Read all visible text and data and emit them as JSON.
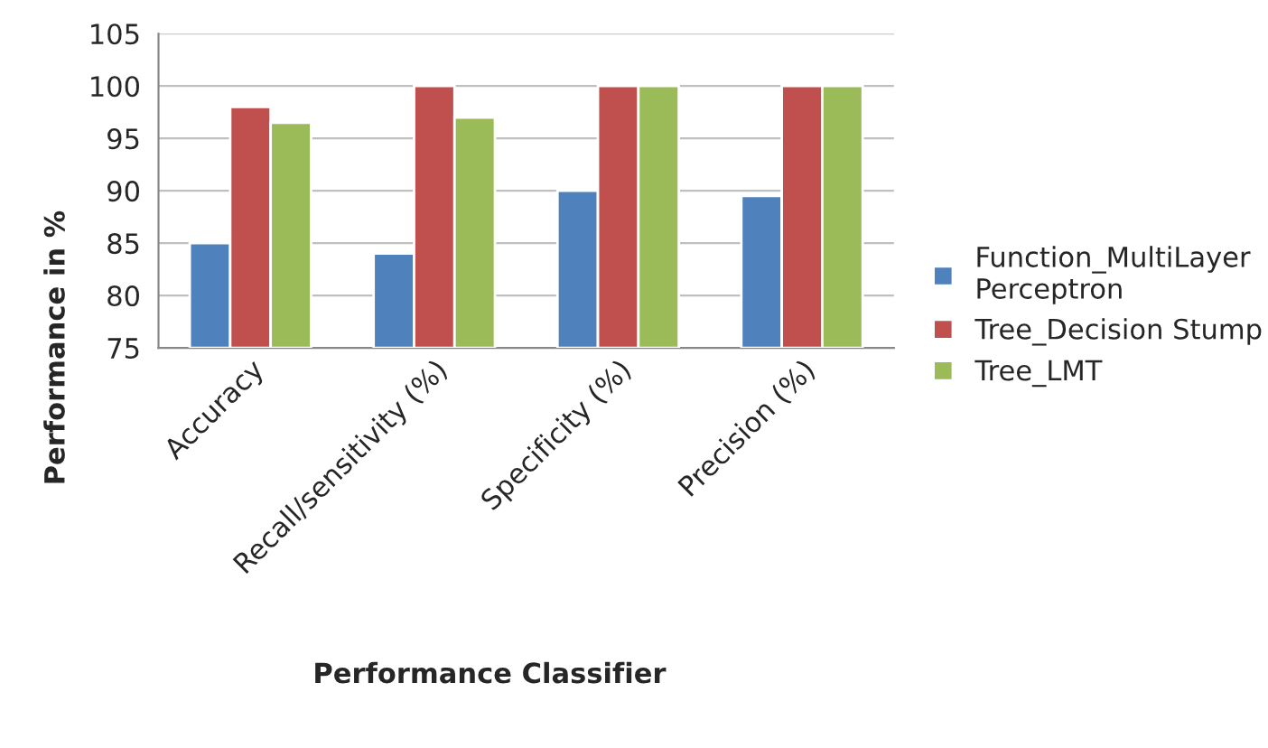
{
  "chart_data": {
    "type": "bar",
    "xlabel": "Performance Classifier",
    "ylabel": "Performance in %",
    "categories": [
      "Accuracy",
      "Recall/sensitivity (%)",
      "Specificity (%)",
      "Precision (%)"
    ],
    "series": [
      {
        "name": "Function_MultiLayer\nPerceptron",
        "color": "#4f81bd",
        "values": [
          85,
          84,
          90,
          89.5
        ]
      },
      {
        "name": "Tree_Decision Stump",
        "color": "#c0504d",
        "values": [
          98,
          100,
          100,
          100
        ]
      },
      {
        "name": "Tree_LMT",
        "color": "#9bbb59",
        "values": [
          96.5,
          97,
          100,
          100
        ]
      }
    ],
    "ylim": [
      75,
      105
    ],
    "yticks": [
      75,
      80,
      85,
      90,
      95,
      100,
      105
    ],
    "grid": "y",
    "legend": "right"
  }
}
